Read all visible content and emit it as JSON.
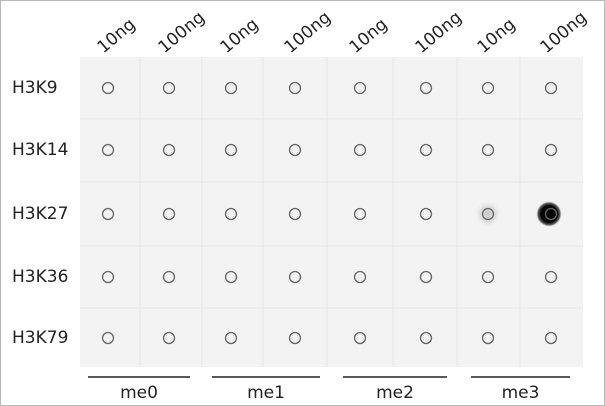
{
  "columns": [
    "10ng",
    "100ng",
    "10ng",
    "100ng",
    "10ng",
    "100ng",
    "10ng",
    "100ng"
  ],
  "rows": [
    "H3K9",
    "H3K14",
    "H3K27",
    "H3K36",
    "H3K79"
  ],
  "groups": [
    "me0",
    "me1",
    "me2",
    "me3"
  ]
}
